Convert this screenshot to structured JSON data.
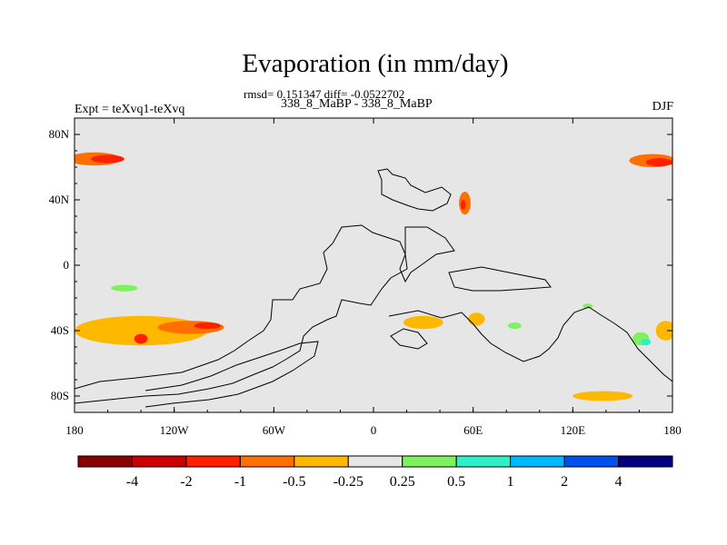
{
  "chart_data": {
    "type": "heatmap",
    "title": "Evaporation (in mm/day)",
    "stats": "rmsd= 0.151347 diff= -0.0522702",
    "subtitle": "338_8_MaBP - 338_8_MaBP",
    "left_label": "Expt = teXvq1-teXvq",
    "right_label": "DJF",
    "xlim": [
      -180,
      180
    ],
    "ylim": [
      -90,
      90
    ],
    "x_ticks": [
      {
        "value": -180,
        "label": "180"
      },
      {
        "value": -120,
        "label": "120W"
      },
      {
        "value": -60,
        "label": "60W"
      },
      {
        "value": 0,
        "label": "0"
      },
      {
        "value": 60,
        "label": "60E"
      },
      {
        "value": 120,
        "label": "120E"
      },
      {
        "value": 180,
        "label": "180"
      }
    ],
    "y_ticks": [
      {
        "value": 80,
        "label": "80N"
      },
      {
        "value": 40,
        "label": "40N"
      },
      {
        "value": 0,
        "label": "0"
      },
      {
        "value": -40,
        "label": "40S"
      },
      {
        "value": -80,
        "label": "80S"
      }
    ],
    "background_color": "#e6e6e6",
    "colorbar": {
      "colors": [
        "#8b0000",
        "#cc0000",
        "#ff2000",
        "#ff7000",
        "#ffb800",
        "#e6e6e6",
        "#7cf25c",
        "#2ef0c8",
        "#00b8ff",
        "#0050f0",
        "#000080"
      ],
      "labels": [
        "-4",
        "-2",
        "-1",
        "-0.5",
        "-0.25",
        "0.25",
        "0.5",
        "1",
        "2",
        "4"
      ]
    },
    "anomaly_regions": [
      {
        "lon": -168,
        "lat": 65,
        "rlon": 16,
        "rlat": 4,
        "level": -0.5
      },
      {
        "lon": -160,
        "lat": 65,
        "rlon": 10,
        "rlat": 2.5,
        "level": -1
      },
      {
        "lon": 168,
        "lat": 64,
        "rlon": 14,
        "rlat": 4,
        "level": -0.5
      },
      {
        "lon": 172,
        "lat": 63,
        "rlon": 8,
        "rlat": 2.5,
        "level": -1
      },
      {
        "lon": 55,
        "lat": 38,
        "rlon": 3.5,
        "rlat": 7,
        "level": -0.5
      },
      {
        "lon": 54,
        "lat": 37,
        "rlon": 1.5,
        "rlat": 3,
        "level": -1
      },
      {
        "lon": -150,
        "lat": -14,
        "rlon": 8,
        "rlat": 2,
        "level": 0.25
      },
      {
        "lon": -140,
        "lat": -40,
        "rlon": 40,
        "rlat": 9,
        "level": -0.25
      },
      {
        "lon": -110,
        "lat": -38,
        "rlon": 20,
        "rlat": 4,
        "level": -0.5
      },
      {
        "lon": -100,
        "lat": -37,
        "rlon": 8,
        "rlat": 2,
        "level": -1
      },
      {
        "lon": -140,
        "lat": -45,
        "rlon": 4,
        "rlat": 3,
        "level": -1
      },
      {
        "lon": 30,
        "lat": -35,
        "rlon": 12,
        "rlat": 4,
        "level": -0.25
      },
      {
        "lon": 62,
        "lat": -33,
        "rlon": 5,
        "rlat": 4,
        "level": -0.25
      },
      {
        "lon": 85,
        "lat": -37,
        "rlon": 4,
        "rlat": 2,
        "level": 0.25
      },
      {
        "lon": 129,
        "lat": -25,
        "rlon": 3,
        "rlat": 1.5,
        "level": 0.25
      },
      {
        "lon": 161,
        "lat": -45,
        "rlon": 5,
        "rlat": 4,
        "level": 0.25
      },
      {
        "lon": 164,
        "lat": -47,
        "rlon": 3,
        "rlat": 2,
        "level": 0.5
      },
      {
        "lon": 176,
        "lat": -40,
        "rlon": 6,
        "rlat": 6,
        "level": -0.25
      },
      {
        "lon": 138,
        "lat": -80,
        "rlon": 18,
        "rlat": 3,
        "level": -0.25
      }
    ]
  }
}
